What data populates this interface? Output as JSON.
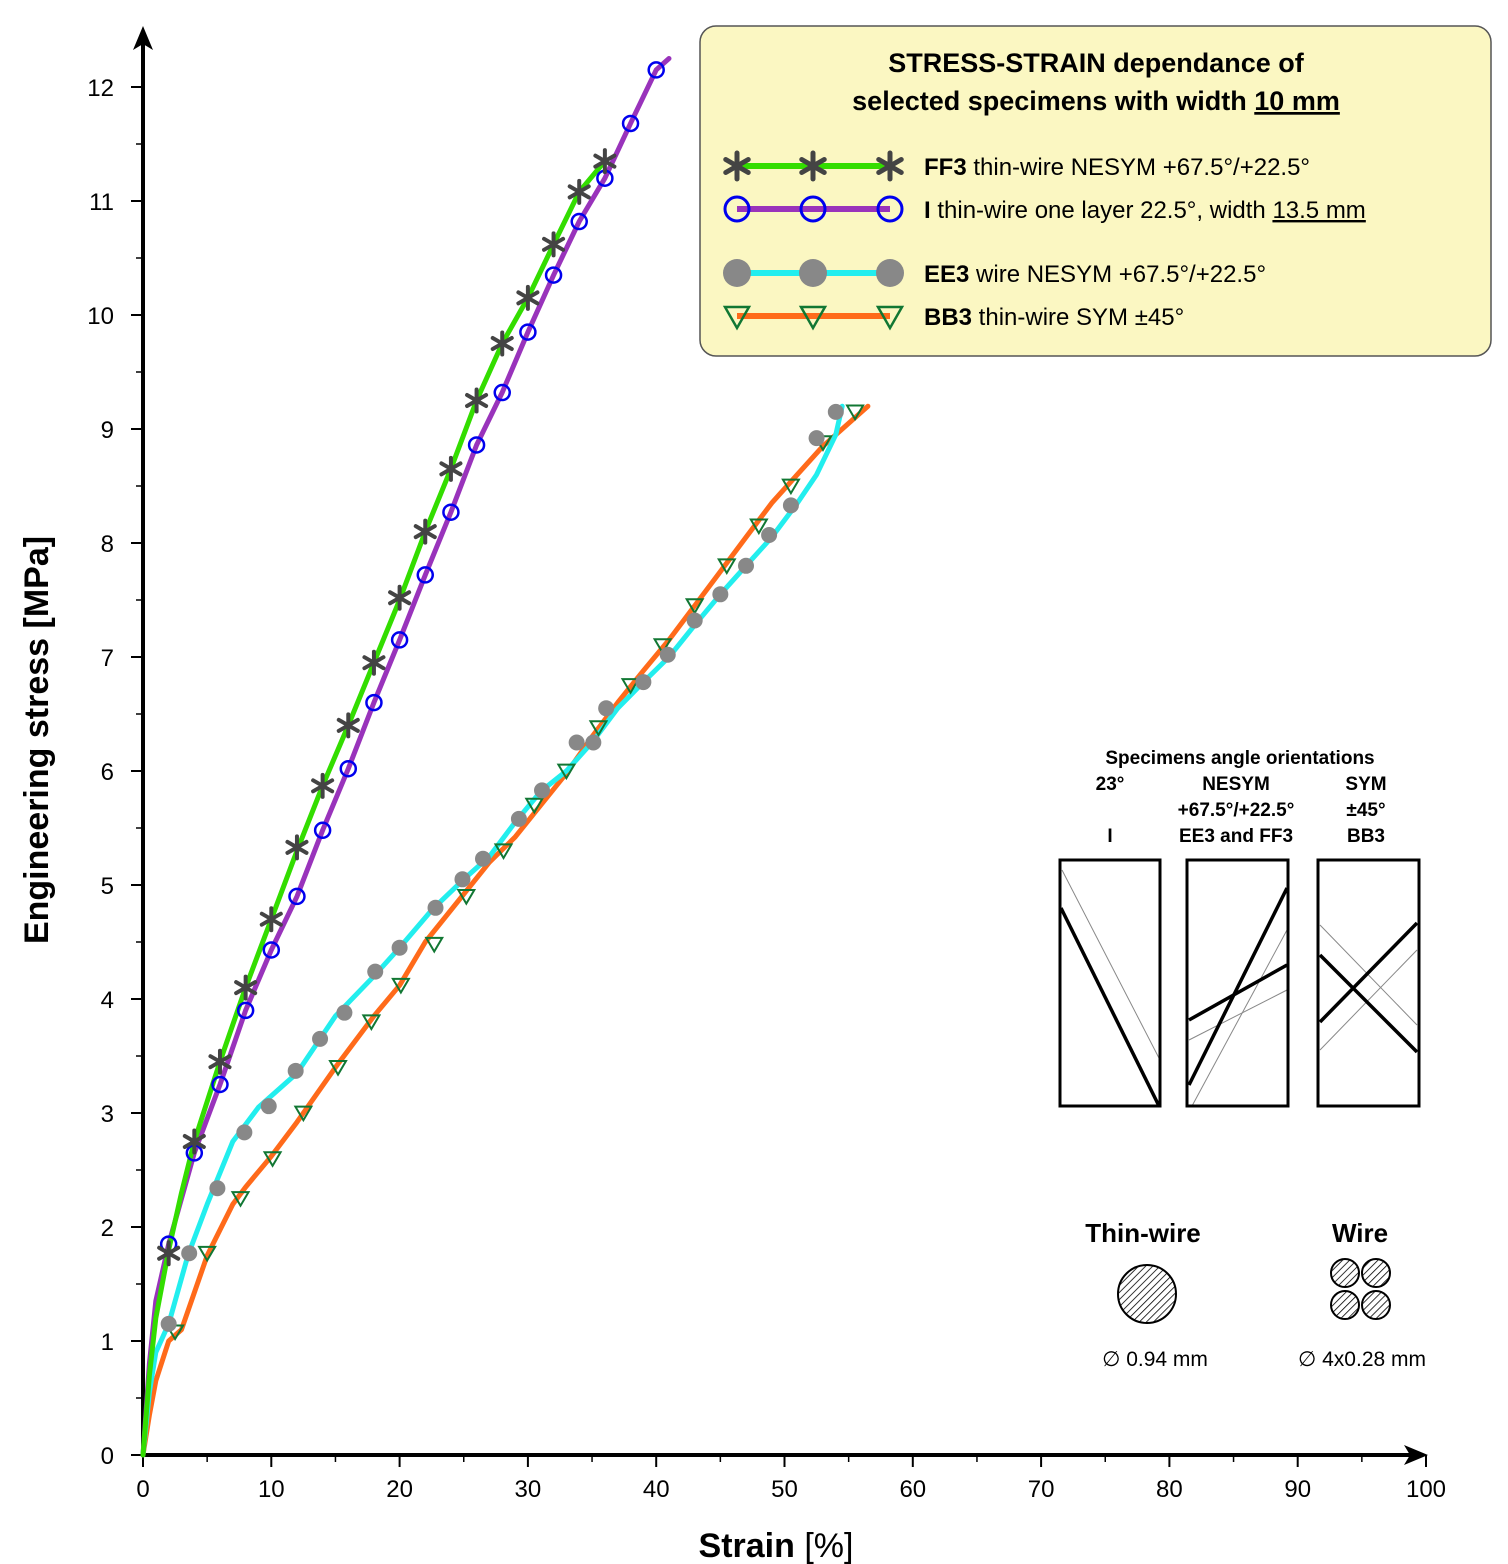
{
  "chart_data": {
    "type": "line",
    "xlabel_bold": "Strain",
    "xlabel_unit": " [%]",
    "ylabel": "Engineering stress [MPa]",
    "xlim": [
      0,
      100
    ],
    "ylim": [
      0,
      12.5
    ],
    "xticks": [
      0,
      10,
      20,
      30,
      40,
      50,
      60,
      70,
      80,
      90,
      100
    ],
    "yticks": [
      0,
      1,
      2,
      3,
      4,
      5,
      6,
      7,
      8,
      9,
      10,
      11,
      12
    ],
    "grid": false,
    "legend_position": "top-right",
    "title_line1": "STRESS-STRAIN dependance of",
    "title_line2_prefix": "selected specimens with width ",
    "title_line2_underlined": "10 mm",
    "series": [
      {
        "id": "ff3",
        "bold_label": "FF3",
        "label": " thin-wire NESYM +67.5°/+22.5°",
        "line_color": "#33dd00",
        "marker": "star",
        "marker_color": "#444444",
        "x": [
          0,
          0.5,
          1,
          2,
          3,
          4,
          6,
          8,
          10,
          12,
          14,
          16,
          18,
          20,
          22,
          24,
          26,
          28,
          30,
          32,
          34,
          36
        ],
        "y": [
          0,
          0.7,
          1.2,
          1.8,
          2.3,
          2.75,
          3.45,
          4.1,
          4.7,
          5.3,
          5.87,
          6.4,
          6.95,
          7.5,
          8.1,
          8.65,
          9.25,
          9.75,
          10.15,
          10.62,
          11.08,
          11.35
        ],
        "marker_x": [
          2,
          4,
          6,
          8,
          10,
          12,
          14,
          16,
          18,
          20,
          22,
          24,
          26,
          28,
          30,
          32,
          34,
          36
        ],
        "marker_y": [
          1.77,
          2.75,
          3.45,
          4.1,
          4.7,
          5.33,
          5.87,
          6.4,
          6.95,
          7.52,
          8.1,
          8.65,
          9.25,
          9.75,
          10.15,
          10.62,
          11.08,
          11.35
        ]
      },
      {
        "id": "i",
        "bold_label": "I",
        "label": " thin-wire one layer 22.5°, width ",
        "label_underlined": "13.5 mm",
        "line_color": "#9933bb",
        "marker": "open-circle",
        "marker_color": "#0000ee",
        "x": [
          0,
          0.5,
          1,
          2,
          4,
          6,
          8,
          10,
          12,
          14,
          16,
          18,
          20,
          22,
          24,
          26,
          28,
          30,
          32,
          34,
          36,
          38,
          40,
          41
        ],
        "y": [
          0,
          0.8,
          1.35,
          1.85,
          2.65,
          3.25,
          3.9,
          4.43,
          4.9,
          5.48,
          6.02,
          6.6,
          7.15,
          7.72,
          8.27,
          8.86,
          9.32,
          9.85,
          10.35,
          10.82,
          11.2,
          11.68,
          12.15,
          12.25
        ],
        "marker_x": [
          2,
          4,
          6,
          8,
          10,
          12,
          14,
          16,
          18,
          20,
          22,
          24,
          26,
          28,
          30,
          32,
          34,
          36,
          38,
          40
        ],
        "marker_y": [
          1.85,
          2.65,
          3.25,
          3.9,
          4.43,
          4.9,
          5.48,
          6.02,
          6.6,
          7.15,
          7.72,
          8.27,
          8.86,
          9.32,
          9.85,
          10.35,
          10.82,
          11.2,
          11.68,
          12.15
        ]
      },
      {
        "id": "ee3",
        "bold_label": "EE3",
        "label": " wire NESYM +67.5°/+22.5°",
        "line_color": "#22eeee",
        "marker": "filled-circle",
        "marker_color": "#888888",
        "x": [
          0,
          0.5,
          1,
          2,
          3.5,
          5,
          7,
          9,
          12,
          15,
          18,
          20,
          22.5,
          25,
          27,
          29,
          31,
          33,
          35,
          37,
          39,
          41,
          43,
          45,
          47,
          49,
          51,
          52.5,
          54,
          54.5
        ],
        "y": [
          0,
          0.55,
          0.9,
          1.15,
          1.75,
          2.2,
          2.75,
          3.05,
          3.35,
          3.85,
          4.2,
          4.45,
          4.78,
          5.05,
          5.25,
          5.55,
          5.82,
          6.0,
          6.25,
          6.55,
          6.78,
          7.0,
          7.28,
          7.55,
          7.8,
          8.05,
          8.35,
          8.6,
          8.95,
          9.2
        ],
        "marker_x": [
          2,
          3.6,
          5.8,
          7.9,
          9.8,
          11.9,
          13.8,
          15.7,
          18.1,
          20,
          22.8,
          24.9,
          26.5,
          29.3,
          31.1,
          33.8,
          35.1,
          36.1,
          39,
          40.9,
          43,
          45,
          47,
          48.8,
          50.5,
          52.5,
          54
        ],
        "marker_y": [
          1.15,
          1.77,
          2.34,
          2.83,
          3.06,
          3.37,
          3.65,
          3.88,
          4.24,
          4.45,
          4.8,
          5.05,
          5.23,
          5.58,
          5.83,
          6.25,
          6.25,
          6.55,
          6.78,
          7.02,
          7.32,
          7.55,
          7.8,
          8.07,
          8.33,
          8.92,
          9.15
        ]
      },
      {
        "id": "bb3",
        "bold_label": "BB3",
        "label": " thin-wire SYM ±45°",
        "line_color": "#ff6a1a",
        "marker": "open-triangle",
        "marker_color": "#117733",
        "x": [
          0,
          0.5,
          1,
          2,
          3,
          5,
          7,
          8,
          10,
          12,
          15,
          18,
          20,
          22,
          25,
          27,
          29,
          31,
          33,
          35,
          37,
          39,
          41,
          43,
          45,
          47,
          49,
          51,
          53,
          55,
          56.5
        ],
        "y": [
          0,
          0.35,
          0.65,
          1.0,
          1.1,
          1.75,
          2.2,
          2.35,
          2.62,
          2.92,
          3.4,
          3.85,
          4.12,
          4.5,
          4.92,
          5.2,
          5.42,
          5.7,
          5.98,
          6.3,
          6.6,
          6.88,
          7.15,
          7.45,
          7.75,
          8.05,
          8.35,
          8.6,
          8.85,
          9.05,
          9.2
        ],
        "marker_x": [
          2.5,
          5,
          7.6,
          10.1,
          12.5,
          15.2,
          17.8,
          20.1,
          22.7,
          25.2,
          28.1,
          30.5,
          33,
          35.5,
          38,
          40.5,
          43,
          45.5,
          48,
          50.5,
          53,
          55.5
        ],
        "marker_y": [
          1.08,
          1.77,
          2.25,
          2.6,
          3.0,
          3.4,
          3.8,
          4.12,
          4.48,
          4.9,
          5.3,
          5.7,
          6.0,
          6.38,
          6.75,
          7.1,
          7.45,
          7.8,
          8.15,
          8.5,
          8.88,
          9.15
        ]
      }
    ]
  },
  "inset": {
    "title": "Specimens angle orientations",
    "columns": [
      {
        "id": "i",
        "lines": [
          "23°",
          "",
          "I"
        ]
      },
      {
        "id": "nesym",
        "lines": [
          "NESYM",
          "+67.5°/+22.5°",
          "EE3 and FF3"
        ]
      },
      {
        "id": "sym",
        "lines": [
          "SYM",
          "±45°",
          "BB3"
        ]
      }
    ],
    "thin_wire_title": "Thin-wire",
    "wire_title": "Wire",
    "thin_wire_dim": "∅ 0.94 mm",
    "wire_dim": "∅ 4x0.28 mm"
  },
  "colors": {
    "legend_bg": "#fbf7c2",
    "legend_border": "#555555"
  }
}
